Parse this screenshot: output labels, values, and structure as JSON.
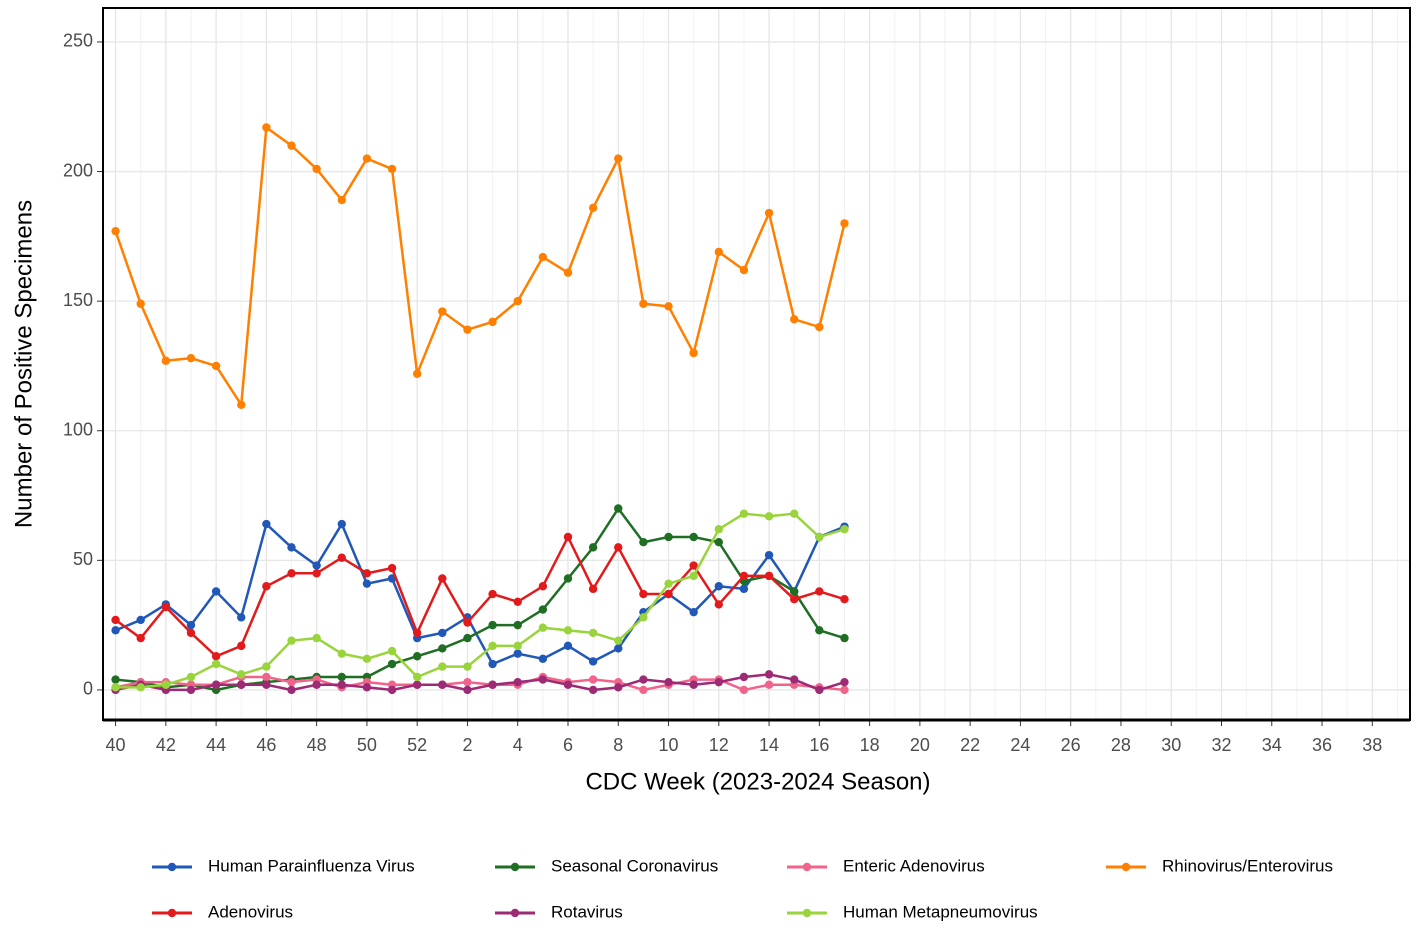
{
  "chart_data": {
    "type": "line",
    "x_label": "CDC Week (2023-2024 Season)",
    "y_label": "Number of Positive Specimens",
    "categories": [
      "40",
      null,
      "42",
      null,
      "44",
      null,
      "46",
      null,
      "48",
      null,
      "50",
      null,
      "52",
      null,
      "2",
      null,
      "4",
      null,
      "6",
      null,
      "8",
      null,
      "10",
      null,
      "12",
      null,
      "14",
      null,
      "16",
      null,
      "18",
      null,
      "20",
      null,
      "22",
      null,
      "24",
      null,
      "26",
      null,
      "28",
      null,
      "30",
      null,
      "32",
      null,
      "34",
      null,
      "36",
      null,
      "38",
      null
    ],
    "ylim": [
      -11.6,
      263.1
    ],
    "yticks": [
      0,
      50,
      100,
      150,
      200,
      250
    ],
    "grid": true,
    "legend": "bottom",
    "series": [
      {
        "name": "Human Parainfluenza Virus",
        "color": "#2158b8",
        "values": [
          23,
          27,
          33,
          25,
          38,
          28,
          64,
          55,
          48,
          64,
          41,
          43,
          20,
          22,
          28,
          10,
          14,
          12,
          17,
          11,
          16,
          30,
          37,
          30,
          40,
          39,
          52,
          38,
          59,
          63,
          null,
          null,
          null,
          null,
          null,
          null,
          null,
          null,
          null,
          null,
          null,
          null,
          null,
          null,
          null,
          null,
          null,
          null,
          null,
          null,
          null,
          null
        ]
      },
      {
        "name": "Seasonal Coronavirus",
        "color": "#1f6e23",
        "values": [
          4,
          3,
          1,
          2,
          0,
          2,
          3,
          4,
          5,
          5,
          5,
          10,
          13,
          16,
          20,
          25,
          25,
          31,
          43,
          55,
          70,
          57,
          59,
          59,
          57,
          42,
          44,
          38,
          23,
          20,
          null,
          null,
          null,
          null,
          null,
          null,
          null,
          null,
          null,
          null,
          null,
          null,
          null,
          null,
          null,
          null,
          null,
          null,
          null,
          null,
          null,
          null
        ]
      },
      {
        "name": "Enteric Adenovirus",
        "color": "#f0648c",
        "values": [
          1,
          3,
          3,
          2,
          2,
          5,
          5,
          3,
          4,
          1,
          3,
          2,
          2,
          2,
          3,
          2,
          2,
          5,
          3,
          4,
          3,
          0,
          2,
          4,
          4,
          0,
          2,
          2,
          1,
          0,
          null,
          null,
          null,
          null,
          null,
          null,
          null,
          null,
          null,
          null,
          null,
          null,
          null,
          null,
          null,
          null,
          null,
          null,
          null,
          null,
          null,
          null
        ]
      },
      {
        "name": "Rhinovirus/Enterovirus",
        "color": "#ff7f00",
        "values": [
          177,
          149,
          127,
          128,
          125,
          110,
          217,
          210,
          201,
          189,
          205,
          201,
          122,
          146,
          139,
          142,
          150,
          167,
          161,
          186,
          205,
          149,
          148,
          130,
          169,
          162,
          184,
          143,
          140,
          180,
          null,
          null,
          null,
          null,
          null,
          null,
          null,
          null,
          null,
          null,
          null,
          null,
          null,
          null,
          null,
          null,
          null,
          null,
          null,
          null,
          null,
          null
        ]
      },
      {
        "name": "Adenovirus",
        "color": "#e31a1c",
        "values": [
          27,
          20,
          32,
          22,
          13,
          17,
          40,
          45,
          45,
          51,
          45,
          47,
          22,
          43,
          26,
          37,
          34,
          40,
          59,
          39,
          55,
          37,
          37,
          48,
          33,
          44,
          44,
          35,
          38,
          35,
          null,
          null,
          null,
          null,
          null,
          null,
          null,
          null,
          null,
          null,
          null,
          null,
          null,
          null,
          null,
          null,
          null,
          null,
          null,
          null,
          null,
          null
        ]
      },
      {
        "name": "Rotavirus",
        "color": "#9c2a75",
        "values": [
          0,
          2,
          0,
          0,
          2,
          2,
          2,
          0,
          2,
          2,
          1,
          0,
          2,
          2,
          0,
          2,
          3,
          4,
          2,
          0,
          1,
          4,
          3,
          2,
          3,
          5,
          6,
          4,
          0,
          3,
          null,
          null,
          null,
          null,
          null,
          null,
          null,
          null,
          null,
          null,
          null,
          null,
          null,
          null,
          null,
          null,
          null,
          null,
          null,
          null,
          null,
          null
        ]
      },
      {
        "name": "Human Metapneumovirus",
        "color": "#99d43c",
        "values": [
          1,
          1,
          2,
          5,
          10,
          6,
          9,
          19,
          20,
          14,
          12,
          15,
          5,
          9,
          9,
          17,
          17,
          24,
          23,
          22,
          19,
          28,
          41,
          44,
          62,
          68,
          67,
          68,
          59,
          62,
          null,
          null,
          null,
          null,
          null,
          null,
          null,
          null,
          null,
          null,
          null,
          null,
          null,
          null,
          null,
          null,
          null,
          null,
          null,
          null,
          null,
          null
        ]
      }
    ]
  }
}
